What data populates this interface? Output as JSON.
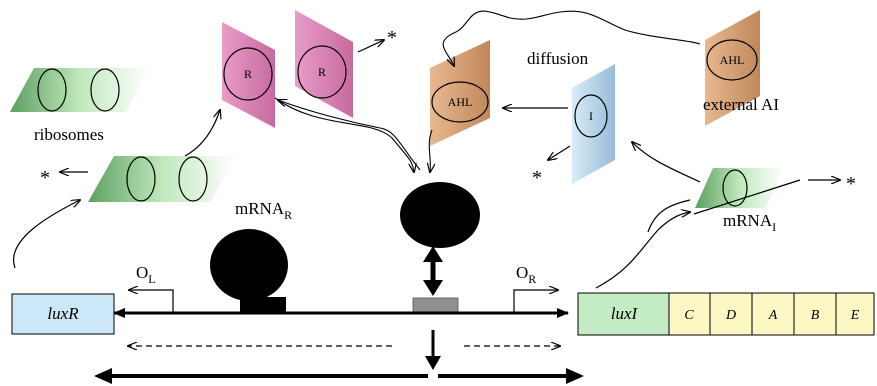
{
  "labels": {
    "ribosomes": "ribosomes",
    "diffusion": "diffusion",
    "external_ai": "external AI",
    "mrna_r_base": "mRNA",
    "mrna_r_sub": "R",
    "mrna_i_base": "mRNA",
    "mrna_i_sub": "I",
    "ol_base": "O",
    "ol_sub": "L",
    "or_base": "O",
    "or_sub": "R",
    "degradation": "*"
  },
  "proteins": {
    "r1": "R",
    "r2": "R",
    "ahl_complex": "AHL",
    "ahl_external": "AHL",
    "i": "I"
  },
  "genes": {
    "luxR": "luxR",
    "luxI": "luxI",
    "C": "C",
    "D": "D",
    "A": "A",
    "B": "B",
    "E": "E"
  },
  "colors": {
    "pink": "#d878b0",
    "orange": "#d8a070",
    "blue": "#b4d4ec",
    "green": "#a8dca0",
    "yellow": "#fcf8c4",
    "luxR_box": "#cce8f8",
    "luxI_box": "#c4ecc4",
    "operator": "#909090"
  }
}
